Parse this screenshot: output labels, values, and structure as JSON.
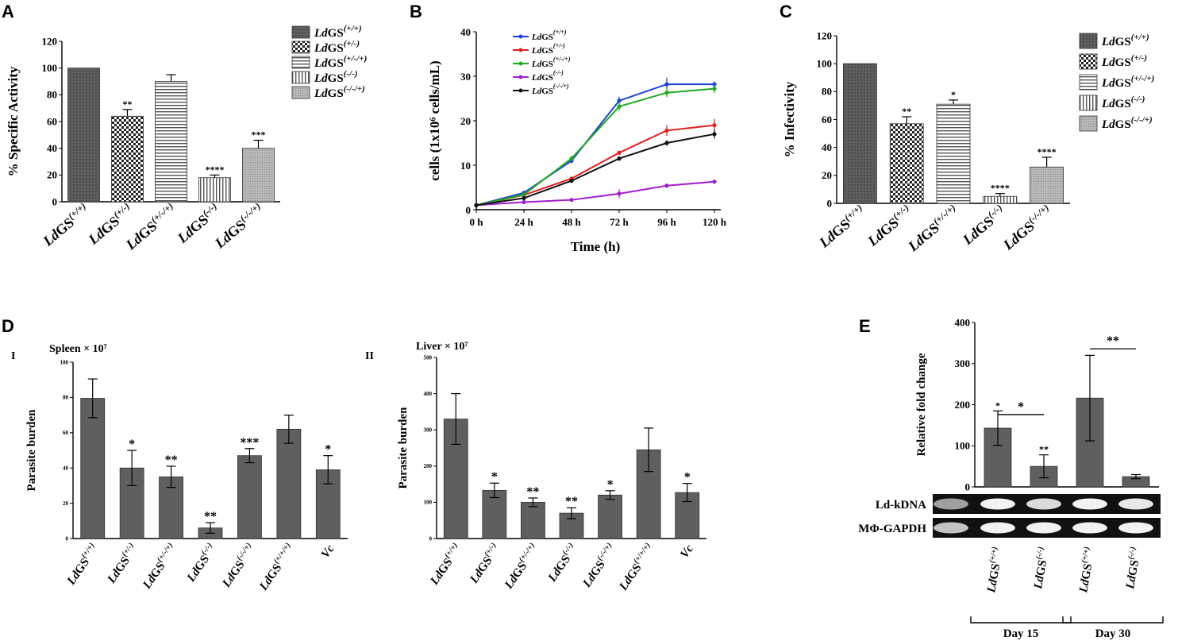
{
  "panel_letters": {
    "a": "A",
    "b": "B",
    "c": "C",
    "d": "D",
    "e": "E"
  },
  "chart_data": [
    {
      "id": "A",
      "type": "bar",
      "ylabel": "% Specific Activity",
      "ylim": [
        0,
        120
      ],
      "yticks": [
        0,
        20,
        40,
        60,
        80,
        100,
        120
      ],
      "categories": [
        "LdGS (+/+)",
        "LdGS (+/-)",
        "LdGS (+/-/+)",
        "LdGS (-/-)",
        "LdGS (-/-/+)"
      ],
      "values": [
        100,
        64,
        90,
        18,
        40
      ],
      "errors": [
        0,
        5,
        5,
        2,
        6
      ],
      "significance": [
        "",
        "**",
        "",
        "****",
        "***"
      ],
      "fills": [
        "#5a5a5a",
        "#cfcfcf",
        "#e8e8e8",
        "#dcdcdc",
        "#bdbdbd"
      ],
      "legend": [
        "LdGS (+/+)",
        "LdGS (+/-)",
        "LdGS (+/-/+)",
        "LdGS (-/-)",
        "LdGS (-/-/+)"
      ]
    },
    {
      "id": "B",
      "type": "line",
      "ylabel": "cells (1x10⁶ cells/mL)",
      "xlabel": "Time (h)",
      "x": [
        "0 h",
        "24 h",
        "48 h",
        "72 h",
        "96 h",
        "120 h"
      ],
      "ylim": [
        0,
        40
      ],
      "yticks": [
        0,
        10,
        20,
        30,
        40
      ],
      "series": [
        {
          "name": "LdGS (+/+)",
          "color": "#1f3fdc",
          "values": [
            1,
            3.8,
            11,
            24.5,
            28.2,
            28.2
          ],
          "errors": [
            0.2,
            0.4,
            0.6,
            0.9,
            1.5,
            0.6
          ]
        },
        {
          "name": "LdGS (+/-)",
          "color": "#e02020",
          "values": [
            1,
            3.3,
            7,
            12.8,
            17.8,
            19
          ],
          "errors": [
            0.2,
            0.3,
            0.4,
            0.5,
            1.2,
            1.4
          ]
        },
        {
          "name": "LdGS (+/-/+)",
          "color": "#1faa1f",
          "values": [
            1,
            3.4,
            11.5,
            23.2,
            26.3,
            27.2
          ],
          "errors": [
            0.2,
            0.3,
            0.6,
            1.0,
            1.0,
            1.0
          ]
        },
        {
          "name": "LdGS (-/-)",
          "color": "#a020d0",
          "values": [
            1,
            1.7,
            2.2,
            3.6,
            5.4,
            6.3
          ],
          "errors": [
            0.1,
            0.2,
            0.3,
            1.0,
            0.3,
            0.3
          ]
        },
        {
          "name": "LdGS (-/-/+)",
          "color": "#111111",
          "values": [
            1,
            2.6,
            6.5,
            11.5,
            15,
            17
          ],
          "errors": [
            0.2,
            0.3,
            0.4,
            0.5,
            0.6,
            1.0
          ]
        }
      ]
    },
    {
      "id": "C",
      "type": "bar",
      "ylabel": "% Infectivity",
      "ylim": [
        0,
        120
      ],
      "yticks": [
        0,
        20,
        40,
        60,
        80,
        100,
        120
      ],
      "categories": [
        "LdGS(+/+)",
        "LdGS (+/-)",
        "LdGS (+/-/+)",
        "LdGS(-/-)",
        "LdGS(-/-/+)"
      ],
      "values": [
        100,
        57,
        71,
        5,
        26
      ],
      "errors": [
        0,
        5,
        3,
        2,
        7
      ],
      "significance": [
        "",
        "**",
        "*",
        "****",
        "****"
      ],
      "fills": [
        "#5a5a5a",
        "#cfcfcf",
        "#e8e8e8",
        "#dcdcdc",
        "#bdbdbd"
      ],
      "legend": [
        "LdGS(+/+)",
        "LdGS (+/-)",
        "LdGS (+/-/+)",
        "LdGS(-/-)",
        "LdGS(-/-/+)"
      ]
    },
    {
      "id": "D-i",
      "type": "bar",
      "title": "Spleen × 10⁷",
      "roman": "I",
      "ylabel": "Parasite burden",
      "ylim": [
        0,
        100
      ],
      "yticks": [
        0,
        20,
        40,
        60,
        80,
        100
      ],
      "categories": [
        "LdGS(+/+)",
        "LdGS(+/-)",
        "LdGS(+/-/+)",
        "LdGS(-/-)",
        "LdGS(-/-/+)",
        "LdGS(+/+/+)",
        "Vc"
      ],
      "values": [
        79.5,
        40,
        35,
        6,
        47,
        62,
        39
      ],
      "errors": [
        11,
        10,
        6,
        3,
        4,
        8,
        8
      ],
      "significance": [
        "",
        "*",
        "**",
        "**",
        "***",
        "",
        "*"
      ]
    },
    {
      "id": "D-ii",
      "type": "bar",
      "title": "Liver × 10⁷",
      "roman": "II",
      "ylabel": "Parasite burden",
      "ylim": [
        0,
        500
      ],
      "yticks": [
        0,
        100,
        200,
        300,
        400,
        500
      ],
      "categories": [
        "LdGS(+/+)",
        "LdGS(+/-)",
        "LdGS(+/-/+)",
        "LdGS(-/-)",
        "LdGS(-/-/+)",
        "LdGS(+/+/+)",
        "Vc"
      ],
      "values": [
        330,
        133,
        100,
        70,
        120,
        245,
        127
      ],
      "errors": [
        70,
        20,
        12,
        15,
        12,
        60,
        25
      ],
      "significance": [
        "",
        "*",
        "**",
        "**",
        "*",
        "",
        "*"
      ]
    },
    {
      "id": "E",
      "type": "bar",
      "ylabel": "Relative fold change",
      "ylim": [
        0,
        400
      ],
      "yticks": [
        0,
        100,
        200,
        300,
        400
      ],
      "categories": [
        "LdGS(+/+)",
        "LdGS(-/-)",
        "LdGS(+/+)",
        "LdGS(-/-)"
      ],
      "groups": [
        "Day 15",
        "Day 30"
      ],
      "values": [
        143,
        50,
        216,
        25
      ],
      "errors": [
        42,
        28,
        104,
        5
      ],
      "significance": [
        "*",
        "**"
      ],
      "blot_labels": [
        "Ld-kDNA",
        "MΦ-GAPDH"
      ]
    }
  ]
}
